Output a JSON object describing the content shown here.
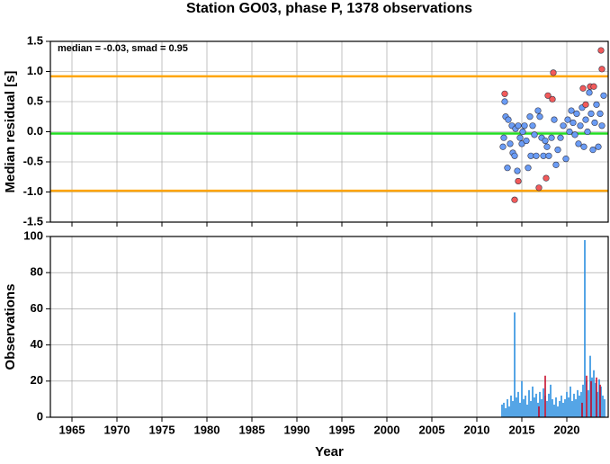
{
  "chart_data": [
    {
      "type": "scatter",
      "title": "Station GO03, phase P, 1378 observations",
      "ylabel": "Median residual [s]",
      "annotation": "median = -0.03, smad = 0.95",
      "xlim": [
        1962.6,
        2024.6
      ],
      "xticks": [
        1965,
        1970,
        1975,
        1980,
        1985,
        1990,
        1995,
        2000,
        2005,
        2010,
        2015,
        2020
      ],
      "ylim": [
        -1.5,
        1.5
      ],
      "yticks": [
        {
          "value": -1.5,
          "label": "-1.5"
        },
        {
          "value": -1,
          "label": "-1.0"
        },
        {
          "value": -0.5,
          "label": "-0.5"
        },
        {
          "value": 0,
          "label": "0.0"
        },
        {
          "value": 0.5,
          "label": "0.5"
        },
        {
          "value": 1,
          "label": "1.0"
        },
        {
          "value": 1.5,
          "label": "1.5"
        }
      ],
      "grid": true,
      "reference_lines": [
        {
          "value": 0.92,
          "color": "#ffa500"
        },
        {
          "value": -0.98,
          "color": "#ffa500"
        },
        {
          "value": -0.03,
          "color": "#22dd22"
        }
      ],
      "series": [
        {
          "color": "#6a9cf5",
          "x": [
            2012.9,
            2013.0,
            2013.1,
            2013.2,
            2013.4,
            2013.5,
            2013.7,
            2013.9,
            2014.0,
            2014.2,
            2014.3,
            2014.5,
            2014.6,
            2014.8,
            2015.0,
            2015.1,
            2015.3,
            2015.5,
            2015.7,
            2015.9,
            2016.0,
            2016.2,
            2016.4,
            2016.6,
            2016.8,
            2017.0,
            2017.2,
            2017.4,
            2017.6,
            2017.8,
            2018.0,
            2018.3,
            2018.6,
            2018.8,
            2019.0,
            2019.3,
            2019.6,
            2019.9,
            2020.1,
            2020.3,
            2020.5,
            2020.7,
            2020.9,
            2021.1,
            2021.3,
            2021.5,
            2021.7,
            2021.9,
            2022.1,
            2022.3,
            2022.5,
            2022.7,
            2022.9,
            2023.1,
            2023.3,
            2023.5,
            2023.7,
            2023.9,
            2024.1
          ],
          "values": [
            -0.25,
            -0.1,
            0.5,
            0.25,
            -0.6,
            0.2,
            -0.2,
            0.1,
            -0.35,
            -0.4,
            0.05,
            -0.65,
            0.1,
            -0.1,
            -0.2,
            0.0,
            0.1,
            -0.15,
            -0.6,
            0.25,
            -0.4,
            0.1,
            -0.05,
            -0.4,
            0.35,
            0.25,
            -0.1,
            -0.4,
            -0.15,
            -0.25,
            -0.4,
            -0.1,
            0.2,
            -0.55,
            -0.3,
            -0.1,
            0.1,
            -0.45,
            0.2,
            0.0,
            0.35,
            0.15,
            -0.05,
            0.3,
            -0.2,
            0.1,
            0.4,
            -0.25,
            0.2,
            0.0,
            0.65,
            0.3,
            -0.3,
            0.15,
            0.45,
            -0.25,
            0.3,
            0.1,
            0.6
          ]
        },
        {
          "color": "#f25a5a",
          "x": [
            2013.1,
            2014.2,
            2014.6,
            2016.9,
            2017.7,
            2017.9,
            2018.4,
            2018.5,
            2021.8,
            2022.1,
            2022.6,
            2023.0,
            2023.8,
            2023.9
          ],
          "values": [
            0.63,
            -1.13,
            -0.82,
            -0.93,
            -0.77,
            0.6,
            0.54,
            0.98,
            0.72,
            0.45,
            0.75,
            0.75,
            1.35,
            1.04
          ]
        }
      ]
    },
    {
      "type": "bar",
      "ylabel": "Observations",
      "xlabel": "Year",
      "xlim": [
        1962.6,
        2024.6
      ],
      "xticks": [
        1965,
        1970,
        1975,
        1980,
        1985,
        1990,
        1995,
        2000,
        2005,
        2010,
        2015,
        2020
      ],
      "ylim": [
        0,
        100
      ],
      "yticks": [
        0,
        20,
        40,
        60,
        80,
        100
      ],
      "grid": true,
      "series": [
        {
          "color": "#2b8fe0",
          "x": [
            2012.8,
            2013.0,
            2013.2,
            2013.4,
            2013.6,
            2013.8,
            2014.0,
            2014.2,
            2014.4,
            2014.6,
            2014.8,
            2015.0,
            2015.2,
            2015.4,
            2015.6,
            2015.8,
            2016.0,
            2016.2,
            2016.4,
            2016.6,
            2016.8,
            2017.0,
            2017.2,
            2017.4,
            2017.6,
            2017.8,
            2018.0,
            2018.2,
            2018.4,
            2018.6,
            2018.8,
            2019.0,
            2019.2,
            2019.4,
            2019.6,
            2019.8,
            2020.0,
            2020.2,
            2020.4,
            2020.6,
            2020.8,
            2021.0,
            2021.2,
            2021.4,
            2021.6,
            2021.8,
            2022.0,
            2022.2,
            2022.4,
            2022.6,
            2022.8,
            2023.0,
            2023.2,
            2023.4,
            2023.6,
            2023.8,
            2024.0,
            2024.2
          ],
          "values": [
            7,
            8,
            5,
            10,
            6,
            12,
            9,
            58,
            11,
            14,
            8,
            20,
            10,
            12,
            7,
            15,
            9,
            17,
            11,
            13,
            8,
            14,
            10,
            16,
            12,
            9,
            13,
            18,
            10,
            7,
            11,
            6,
            9,
            12,
            8,
            10,
            14,
            11,
            17,
            9,
            13,
            10,
            15,
            12,
            14,
            18,
            98,
            20,
            15,
            34,
            22,
            26,
            19,
            14,
            21,
            17,
            12,
            10
          ]
        },
        {
          "color": "#c8102e",
          "x": [
            2016.9,
            2017.6,
            2021.7,
            2022.2,
            2022.7,
            2023.3,
            2023.7
          ],
          "values": [
            6,
            23,
            8,
            23,
            20,
            22,
            18
          ]
        }
      ]
    }
  ]
}
